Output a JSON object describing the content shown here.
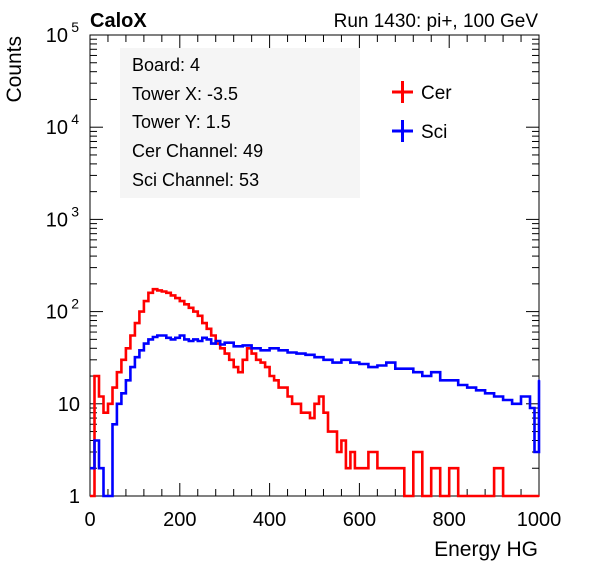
{
  "header": {
    "left_title": "CaloX",
    "right_title": "Run 1430: pi+, 100 GeV"
  },
  "info_box": [
    "Board: 4",
    "Tower X: -3.5",
    "Tower Y: 1.5",
    "Cer Channel: 49",
    "Sci Channel: 53"
  ],
  "chart_data": {
    "type": "line",
    "title": "",
    "xlabel": "Energy HG",
    "ylabel": "Counts",
    "xlim": [
      0,
      1000
    ],
    "ylim": [
      1,
      100000
    ],
    "yscale": "log",
    "grid": false,
    "legend_position": "top-right",
    "x_ticks": [
      "0",
      "200",
      "400",
      "600",
      "800",
      "1000"
    ],
    "y_ticks": [
      {
        "value": 1,
        "base": "1",
        "exp": ""
      },
      {
        "value": 10,
        "base": "10",
        "exp": ""
      },
      {
        "value": 100,
        "base": "10",
        "exp": "2"
      },
      {
        "value": 1000,
        "base": "10",
        "exp": "3"
      },
      {
        "value": 10000,
        "base": "10",
        "exp": "4"
      },
      {
        "value": 100000,
        "base": "10",
        "exp": "5"
      }
    ],
    "series": [
      {
        "name": "Cer",
        "color": "#ff0000",
        "x": [
          0,
          10,
          20,
          30,
          40,
          50,
          60,
          70,
          80,
          90,
          100,
          110,
          120,
          130,
          140,
          150,
          160,
          170,
          180,
          190,
          200,
          210,
          220,
          230,
          240,
          250,
          260,
          270,
          280,
          290,
          300,
          310,
          320,
          330,
          340,
          350,
          360,
          370,
          380,
          390,
          400,
          410,
          420,
          430,
          440,
          450,
          460,
          470,
          480,
          490,
          500,
          510,
          520,
          530,
          540,
          550,
          560,
          570,
          580,
          590,
          600,
          620,
          640,
          660,
          680,
          700,
          720,
          740,
          760,
          780,
          800,
          820,
          840,
          860,
          880,
          900,
          920,
          940,
          960,
          980,
          1000
        ],
        "values": [
          1,
          20,
          12,
          8,
          10,
          15,
          22,
          30,
          40,
          55,
          75,
          100,
          130,
          160,
          175,
          170,
          165,
          160,
          150,
          140,
          130,
          120,
          110,
          100,
          90,
          75,
          65,
          55,
          45,
          40,
          35,
          30,
          25,
          22,
          30,
          40,
          35,
          30,
          28,
          25,
          20,
          18,
          15,
          15,
          12,
          10,
          10,
          8,
          8,
          7,
          10,
          12,
          8,
          5,
          5,
          3,
          4,
          2,
          3,
          2,
          2,
          3,
          2,
          2,
          2,
          1,
          3,
          1,
          2,
          1,
          2,
          1,
          1,
          1,
          1,
          2,
          1,
          1,
          1,
          1,
          1
        ]
      },
      {
        "name": "Sci",
        "color": "#0000ff",
        "x": [
          0,
          10,
          20,
          30,
          40,
          50,
          60,
          70,
          80,
          90,
          100,
          110,
          120,
          130,
          140,
          150,
          160,
          170,
          180,
          190,
          200,
          210,
          220,
          230,
          240,
          250,
          260,
          270,
          280,
          290,
          300,
          320,
          340,
          360,
          380,
          400,
          420,
          440,
          460,
          480,
          500,
          520,
          540,
          560,
          580,
          600,
          620,
          640,
          660,
          680,
          700,
          720,
          740,
          760,
          780,
          800,
          820,
          840,
          860,
          880,
          900,
          920,
          940,
          960,
          980,
          990,
          1000
        ],
        "values": [
          2,
          4,
          2,
          1,
          1,
          6,
          10,
          13,
          18,
          25,
          32,
          38,
          45,
          50,
          53,
          55,
          55,
          52,
          50,
          52,
          55,
          50,
          48,
          50,
          48,
          52,
          50,
          45,
          48,
          44,
          46,
          42,
          43,
          40,
          38,
          40,
          38,
          36,
          35,
          34,
          32,
          30,
          28,
          30,
          28,
          27,
          25,
          26,
          28,
          24,
          24,
          22,
          20,
          22,
          18,
          18,
          16,
          15,
          14,
          13,
          12,
          11,
          10,
          12,
          9,
          3,
          18
        ]
      }
    ]
  }
}
